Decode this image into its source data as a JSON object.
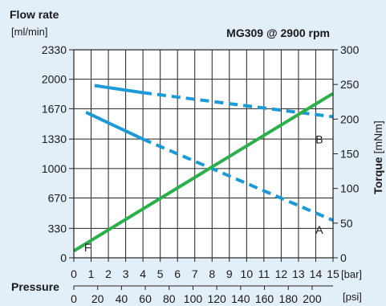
{
  "chart_data": {
    "type": "line",
    "title": "MG309 @ 2900 rpm",
    "left_axis": {
      "label": "Flow rate",
      "unit": "[ml/min]",
      "ticks": [
        "0",
        "330",
        "670",
        "1000",
        "1330",
        "1670",
        "2000",
        "2330"
      ],
      "tick_values": [
        0,
        330,
        670,
        1000,
        1330,
        1670,
        2000,
        2330
      ],
      "range": [
        0,
        2330
      ]
    },
    "right_axis": {
      "label": "Torque",
      "unit": "[mNm]",
      "ticks": [
        "0",
        "50",
        "100",
        "150",
        "200",
        "250",
        "300"
      ],
      "tick_values": [
        0,
        50,
        100,
        150,
        200,
        250,
        300
      ],
      "range": [
        0,
        300
      ]
    },
    "x_axis": {
      "label": "Pressure",
      "unit": "[bar]",
      "ticks": [
        "0",
        "1",
        "2",
        "3",
        "4",
        "5",
        "6",
        "7",
        "8",
        "9",
        "10",
        "11",
        "12",
        "13",
        "14",
        "15"
      ],
      "range": [
        0,
        15
      ]
    },
    "x2_axis": {
      "unit": "[psi]",
      "ticks": [
        "0",
        "20",
        "40",
        "60",
        "80",
        "100",
        "120",
        "140",
        "160",
        "180",
        "200"
      ],
      "tick_values": [
        0,
        20,
        40,
        60,
        80,
        100,
        120,
        140,
        160,
        180,
        200
      ]
    },
    "grid": true,
    "series": [
      {
        "name": "A",
        "axis": "left",
        "color": "#1a9ad6",
        "solid": [
          [
            0.7,
            1630
          ],
          [
            4,
            1330
          ]
        ],
        "dashed": [
          [
            4,
            1330
          ],
          [
            15,
            420
          ]
        ]
      },
      {
        "name": "B",
        "axis": "left",
        "color": "#1a9ad6",
        "solid": [
          [
            1.2,
            1930
          ],
          [
            4,
            1850
          ]
        ],
        "dashed": [
          [
            4,
            1850
          ],
          [
            15,
            1580
          ]
        ]
      },
      {
        "name": "F",
        "axis": "right",
        "color": "#2ab04a",
        "solid": [
          [
            0,
            10
          ],
          [
            15,
            237
          ]
        ],
        "dashed": []
      }
    ]
  }
}
